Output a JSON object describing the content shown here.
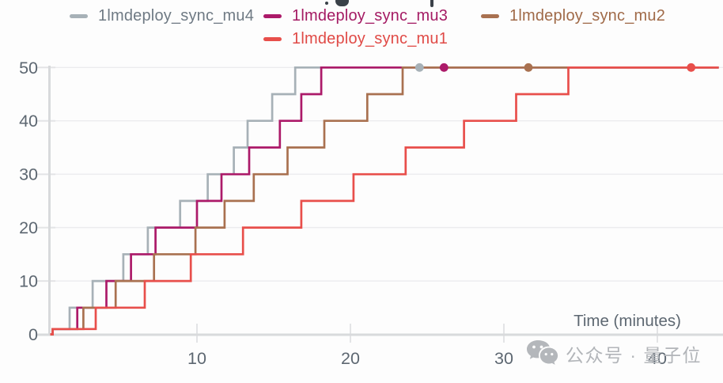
{
  "watermark": {
    "icon": "wechat-icon",
    "text": "公众号 · 量子位"
  },
  "chart_data": {
    "type": "line",
    "line_style": "step-post",
    "title": "",
    "xlabel": "Time (minutes)",
    "ylabel": "",
    "xlim": [
      0,
      44.0
    ],
    "ylim": [
      0,
      50
    ],
    "xticks": [
      10,
      20,
      30,
      40
    ],
    "yticks": [
      0,
      10,
      20,
      30,
      40,
      50
    ],
    "grid": "horizontal",
    "legend_position": "top",
    "style": {
      "background": "#fdfdfd",
      "axis_color": "#d8dadc",
      "tick_color": "#e3e4e6",
      "grid_color": "#ececee",
      "tick_label_color": "#5d6771",
      "axis_label_color": "#5d6771"
    },
    "series": [
      {
        "name": "1lmdeploy_sync_mu4",
        "color": "#a7b1b7",
        "label_color": "#6f7a84",
        "end_marker_x": 24.5,
        "points": [
          [
            0,
            0
          ],
          [
            0.6,
            1
          ],
          [
            1.7,
            5
          ],
          [
            3.2,
            10
          ],
          [
            5.2,
            15
          ],
          [
            6.8,
            20
          ],
          [
            8.9,
            25
          ],
          [
            10.7,
            30
          ],
          [
            12.4,
            35
          ],
          [
            13.3,
            40
          ],
          [
            14.9,
            45
          ],
          [
            16.4,
            50
          ]
        ]
      },
      {
        "name": "1lmdeploy_sync_mu3",
        "color": "#ac1a69",
        "label_color": "#a41a63",
        "end_marker_x": 26.1,
        "points": [
          [
            0,
            0
          ],
          [
            0.6,
            1
          ],
          [
            2.2,
            5
          ],
          [
            4.1,
            10
          ],
          [
            5.7,
            15
          ],
          [
            7.3,
            20
          ],
          [
            10.0,
            25
          ],
          [
            11.6,
            30
          ],
          [
            13.4,
            35
          ],
          [
            15.4,
            40
          ],
          [
            16.8,
            45
          ],
          [
            18.1,
            50
          ]
        ]
      },
      {
        "name": "1lmdeploy_sync_mu2",
        "color": "#a97150",
        "label_color": "#a06a48",
        "end_marker_x": 31.6,
        "points": [
          [
            0,
            0
          ],
          [
            0.6,
            1
          ],
          [
            2.6,
            5
          ],
          [
            4.7,
            10
          ],
          [
            7.2,
            15
          ],
          [
            9.9,
            20
          ],
          [
            11.8,
            25
          ],
          [
            13.7,
            30
          ],
          [
            15.9,
            35
          ],
          [
            18.3,
            40
          ],
          [
            21.1,
            45
          ],
          [
            23.4,
            50
          ]
        ]
      },
      {
        "name": "1lmdeploy_sync_mu1",
        "color": "#e84f4b",
        "label_color": "#e04a46",
        "end_marker_x": 42.2,
        "points": [
          [
            0,
            0
          ],
          [
            0.6,
            1
          ],
          [
            3.4,
            5
          ],
          [
            6.6,
            10
          ],
          [
            9.6,
            15
          ],
          [
            13.0,
            20
          ],
          [
            16.8,
            25
          ],
          [
            20.2,
            30
          ],
          [
            23.6,
            35
          ],
          [
            27.4,
            40
          ],
          [
            30.8,
            45
          ],
          [
            34.2,
            50
          ]
        ]
      }
    ]
  }
}
